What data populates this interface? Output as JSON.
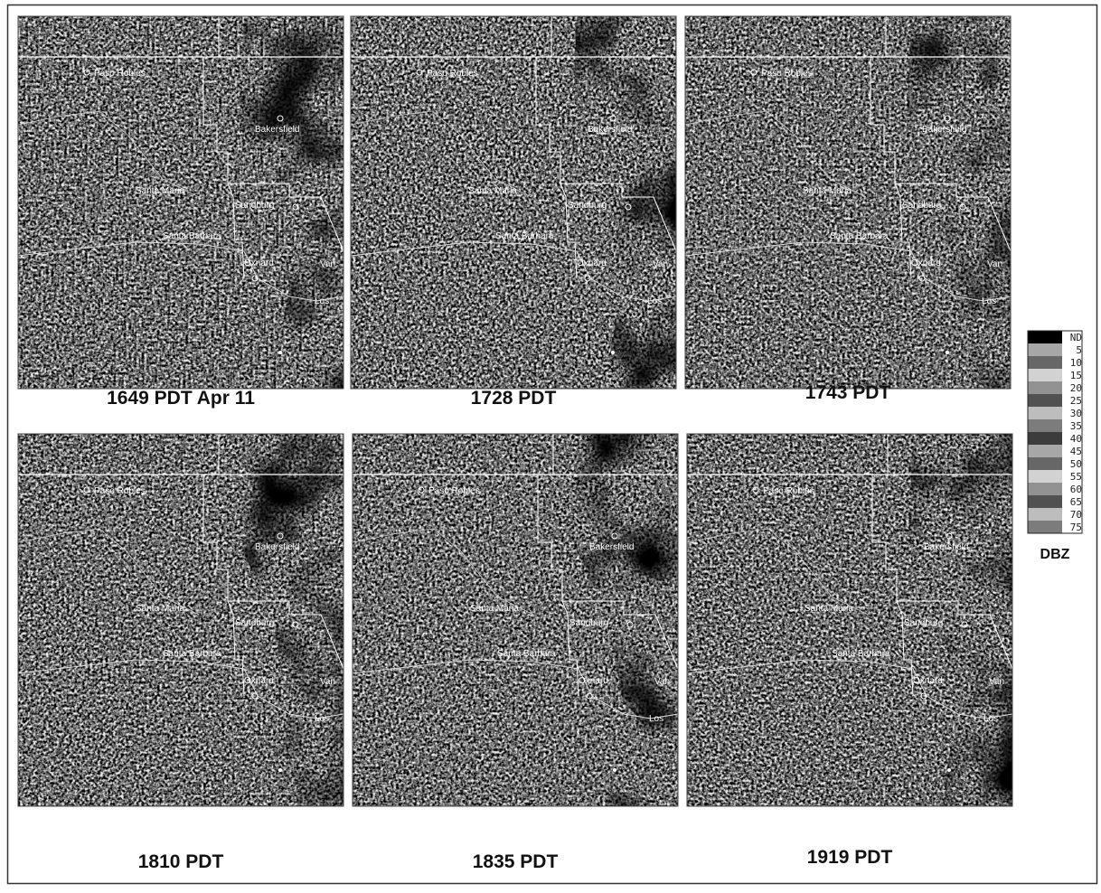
{
  "panels": [
    {
      "caption": "1649 PDT Apr 11"
    },
    {
      "caption": "1728 PDT"
    },
    {
      "caption": "1743 PDT"
    },
    {
      "caption": "1810 PDT"
    },
    {
      "caption": "1835 PDT"
    },
    {
      "caption": "1919 PDT"
    }
  ],
  "map_labels": [
    "Paso Robles",
    "Bakersfield",
    "Santa Maria",
    "Sandburg",
    "Santa Barbara",
    "Oxnard",
    "Van",
    "Los"
  ],
  "legend": {
    "labels": [
      "ND",
      "5",
      "10",
      "15",
      "20",
      "25",
      "30",
      "35",
      "40",
      "45",
      "50",
      "55",
      "60",
      "65",
      "70",
      "75"
    ],
    "title": "DBZ"
  }
}
